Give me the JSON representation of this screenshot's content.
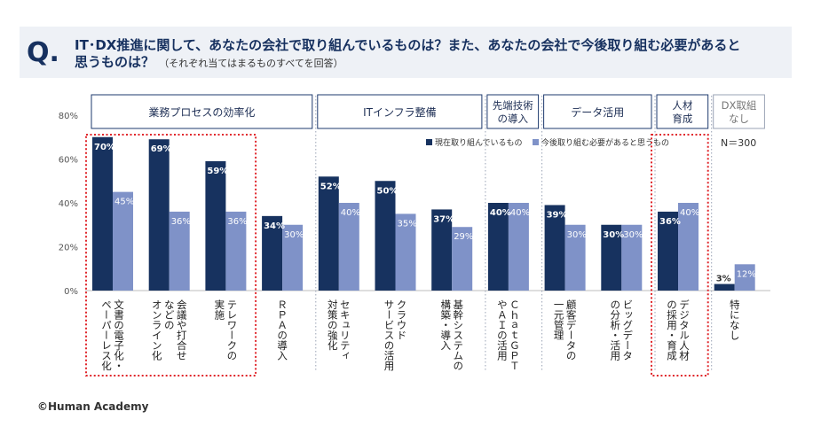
{
  "header": {
    "q_mark": "Q.",
    "question_line1": "IT･DX推進に関して、あなたの会社で取り組んでいるものは？また、あなたの会社で今後取り組む必要があると",
    "question_line2": "思うものは？",
    "note": "（それぞれ当てはまるものすべてを回答）"
  },
  "footer": {
    "copyright": "©Human Academy"
  },
  "chart_data": {
    "type": "bar",
    "ylim": [
      0,
      80
    ],
    "yticks": [
      "0%",
      "20%",
      "40%",
      "60%",
      "80%"
    ],
    "ytick_values": [
      0,
      20,
      40,
      60,
      80
    ],
    "legend": {
      "placement": "top-right",
      "items": [
        "現在取り組んでいるもの",
        "今後取り組む必要があると思うもの"
      ]
    },
    "n_label": "N＝300",
    "colors": {
      "current": "#17325f",
      "future": "#7f92c8",
      "highlight": "#e0262b",
      "group_border": "#1e3a6e"
    },
    "groups": [
      {
        "lines": [
          "業務プロセスの効率化"
        ],
        "start": 0,
        "end": 3
      },
      {
        "lines": [
          "ITインフラ整備"
        ],
        "start": 4,
        "end": 6
      },
      {
        "lines": [
          "先端技術",
          "の導入"
        ],
        "start": 7,
        "end": 7
      },
      {
        "lines": [
          "データ活用"
        ],
        "start": 8,
        "end": 9
      },
      {
        "lines": [
          "人材",
          "育成"
        ],
        "start": 10,
        "end": 10
      },
      {
        "lines": [
          "DX取組",
          "なし"
        ],
        "start": 11,
        "end": 11,
        "muted": true
      }
    ],
    "categories": [
      {
        "label_cols": [
          "文書の電子化・",
          "ペーパーレス化"
        ]
      },
      {
        "label_cols": [
          "会議や打合せ",
          "などの",
          "オンライン化"
        ]
      },
      {
        "label_cols": [
          "テレワークの",
          "実施"
        ]
      },
      {
        "label_cols": [
          "ＲＰＡの導入"
        ]
      },
      {
        "label_cols": [
          "セキュリティ",
          "対策の強化"
        ]
      },
      {
        "label_cols": [
          "クラウド",
          "サービスの活用"
        ]
      },
      {
        "label_cols": [
          "基幹システムの",
          "構築・導入"
        ]
      },
      {
        "label_cols": [
          "ＣｈａｔＧＰＴ",
          "やＡＩの活用"
        ]
      },
      {
        "label_cols": [
          "顧客データの",
          "一元管理"
        ]
      },
      {
        "label_cols": [
          "ビッグデータ",
          "の分析・活用"
        ]
      },
      {
        "label_cols": [
          "デジタル人材",
          "の採用・育成"
        ]
      },
      {
        "label_cols": [
          "特になし"
        ]
      }
    ],
    "series": [
      {
        "name": "現在取り組んでいるもの",
        "values": [
          70,
          69,
          59,
          34,
          52,
          50,
          37,
          40,
          39,
          30,
          36,
          3
        ],
        "labels": [
          "70%",
          "69%",
          "59%",
          "34%",
          "52%",
          "50%",
          "37%",
          "40%",
          "39%",
          "30%",
          "36%",
          "3%"
        ]
      },
      {
        "name": "今後取り組む必要があると思うもの",
        "values": [
          45,
          36,
          36,
          30,
          40,
          35,
          29,
          40,
          30,
          30,
          40,
          12
        ],
        "labels": [
          "45%",
          "36%",
          "36%",
          "30%",
          "40%",
          "35%",
          "29%",
          "40%",
          "30%",
          "30%",
          "40%",
          "12%"
        ]
      }
    ],
    "highlights": [
      {
        "start": 0,
        "end": 2
      },
      {
        "start": 10,
        "end": 10
      }
    ]
  }
}
